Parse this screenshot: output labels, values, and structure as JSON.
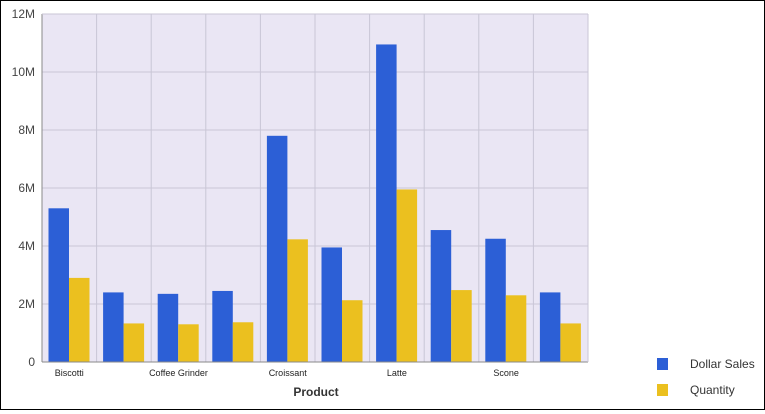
{
  "chart_data": {
    "type": "bar",
    "title": "",
    "xlabel": "Product",
    "ylabel": "",
    "categories": [
      "Biscotti",
      "",
      "Coffee Grinder",
      "",
      "Croissant",
      "",
      "Latte",
      "",
      "Scone",
      ""
    ],
    "series": [
      {
        "name": "Dollar Sales",
        "color": "#2c5fd6",
        "values": [
          5300000,
          2400000,
          2350000,
          2450000,
          7800000,
          3950000,
          10950000,
          4550000,
          4250000,
          2400000
        ]
      },
      {
        "name": "Quantity",
        "color": "#ebc01f",
        "values": [
          2900000,
          1330000,
          1300000,
          1370000,
          4230000,
          2130000,
          5950000,
          2480000,
          2300000,
          1330000
        ]
      }
    ],
    "ylim": [
      0,
      12000000
    ],
    "yticks": [
      0,
      2000000,
      4000000,
      6000000,
      8000000,
      10000000,
      12000000
    ],
    "ytick_labels": [
      "0",
      "2M",
      "4M",
      "6M",
      "8M",
      "10M",
      "12M"
    ],
    "grid": true,
    "plot_background": "#eae6f4",
    "legend_position": "bottom-right"
  }
}
